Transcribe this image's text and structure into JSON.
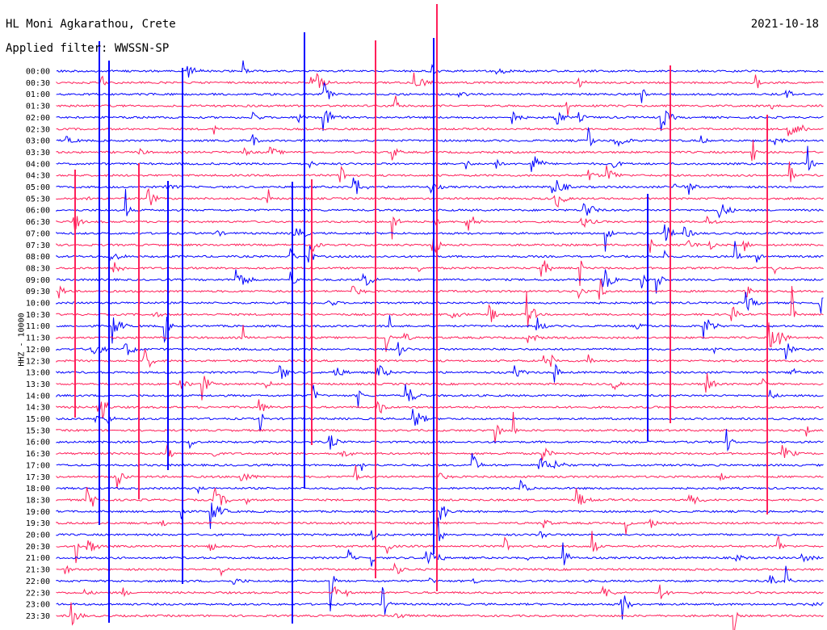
{
  "header": {
    "station": "HL Moni Agkarathou, Crete",
    "filter": "Applied filter: WWSSN-SP",
    "date": "2021-10-18",
    "channel": "HHZ - 10000"
  },
  "colors": {
    "even_hour": "#0000ff",
    "half_hour": "#ff1f5a"
  },
  "chart_data": {
    "type": "line",
    "title": "HL Moni Agkarathou, Crete",
    "subtitle": "Applied filter: WWSSN-SP",
    "date": "2021-10-18",
    "ylabel": "HHZ - 10000",
    "row_labels": [
      "00:00",
      "00:30",
      "01:00",
      "01:30",
      "02:00",
      "02:30",
      "03:00",
      "03:30",
      "04:00",
      "04:30",
      "05:00",
      "05:30",
      "06:00",
      "06:30",
      "07:00",
      "07:30",
      "08:00",
      "08:30",
      "09:00",
      "09:30",
      "10:00",
      "10:30",
      "11:00",
      "11:30",
      "12:00",
      "12:30",
      "13:00",
      "13:30",
      "14:00",
      "14:30",
      "15:00",
      "15:30",
      "16:00",
      "16:30",
      "17:00",
      "17:30",
      "18:00",
      "18:30",
      "19:00",
      "19:30",
      "20:00",
      "20:30",
      "21:00",
      "21:30",
      "22:00",
      "22:30",
      "23:00",
      "23:30"
    ],
    "series_colors_alternate": [
      "blue",
      "red"
    ],
    "grid": false,
    "legend": "none"
  }
}
